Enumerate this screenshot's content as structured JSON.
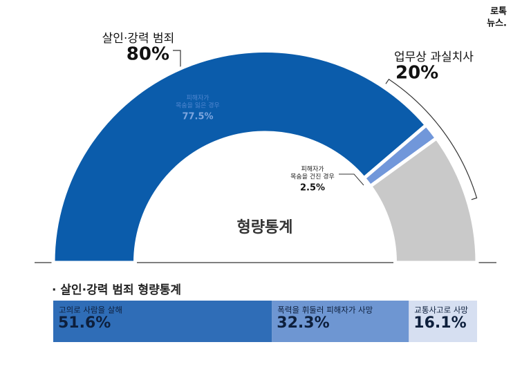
{
  "header": {
    "brand": [
      "로톡",
      "뉴스."
    ]
  },
  "chart_data": [
    {
      "type": "half-donut",
      "title": "형량통계",
      "groups": [
        {
          "name": "살인·강력 범죄",
          "label": "80%"
        },
        {
          "name": "업무상 과실치사",
          "label": "20%"
        }
      ],
      "categories": [
        [
          "피해자가",
          "목숨을 잃은 경우"
        ],
        [
          "피해자가",
          "목숨을 건진 경우"
        ],
        null
      ],
      "values": [
        77.5,
        2.5,
        20
      ],
      "value_labels": [
        "77.5%",
        "2.5%",
        null
      ],
      "colors": [
        "#0b5cab",
        "#7197da",
        "#c9c9c9"
      ]
    },
    {
      "type": "stacked-bar",
      "title": "· 살인·강력 범죄 형량통계",
      "categories": [
        "고의로 사람을 살해",
        "폭력을 휘둘러 피해자가 사망",
        "교통사고로 사망"
      ],
      "values": [
        51.6,
        32.3,
        16.1
      ],
      "value_labels": [
        "51.6%",
        "32.3%",
        "16.1%"
      ],
      "colors": [
        "#2f6db7",
        "#6e96d2",
        "#d6dff1"
      ]
    }
  ]
}
